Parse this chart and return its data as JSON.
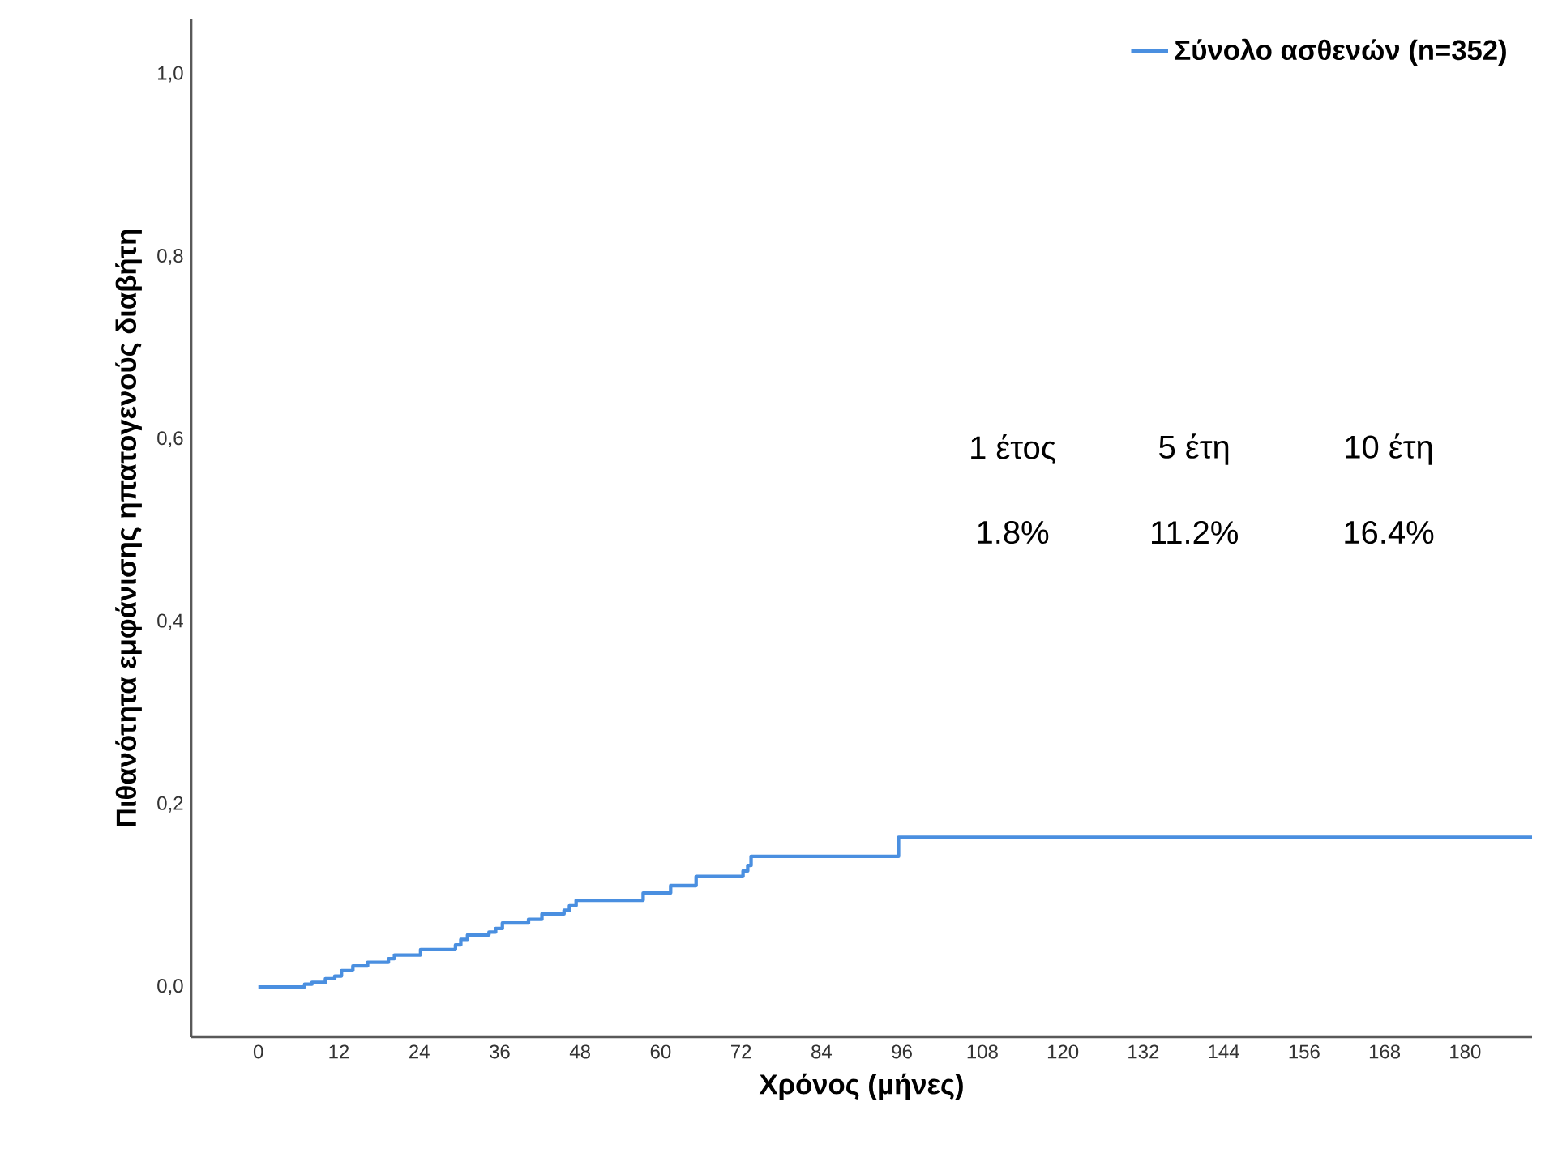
{
  "chart_data": {
    "type": "step",
    "xlabel": "Χρόνος (μήνες)",
    "ylabel": "Πιθανότητα εμφάνισης ηπατογενούς διαβήτη",
    "series": [
      {
        "name": "Σύνολο ασθενών (n=352)",
        "color": "#4a8fe0",
        "x": [
          0,
          6.9,
          8,
          10,
          11.4,
          12.4,
          14.1,
          16.3,
          19.4,
          20.3,
          24.2,
          29.4,
          30.2,
          31.2,
          34.4,
          35.4,
          36.4,
          40.3,
          42.3,
          45.6,
          46.4,
          47.4,
          57.4,
          61.5,
          65.3,
          72.3,
          73,
          73.5,
          95.5,
          190
        ],
        "values": [
          0,
          0.003,
          0.005,
          0.009,
          0.012,
          0.018,
          0.023,
          0.027,
          0.031,
          0.035,
          0.041,
          0.046,
          0.052,
          0.057,
          0.06,
          0.064,
          0.07,
          0.074,
          0.08,
          0.084,
          0.089,
          0.095,
          0.103,
          0.111,
          0.121,
          0.127,
          0.133,
          0.143,
          0.164,
          0.164
        ]
      }
    ],
    "xlim": [
      -10,
      190
    ],
    "ylim": [
      -0.055,
      1.06
    ],
    "xticks": [
      0,
      12,
      24,
      36,
      48,
      60,
      72,
      84,
      96,
      108,
      120,
      132,
      144,
      156,
      168,
      180
    ],
    "yticks": [
      {
        "value": 0,
        "label": "0,0"
      },
      {
        "value": 0.2,
        "label": "0,2"
      },
      {
        "value": 0.4,
        "label": "0,4"
      },
      {
        "value": 0.6,
        "label": "0,6"
      },
      {
        "value": 0.8,
        "label": "0,8"
      },
      {
        "value": 1.0,
        "label": "1,0"
      }
    ],
    "annotations": [
      "1 έτος",
      "5 έτη",
      "10 έτη",
      "1.8%",
      "11.2%",
      "16.4%"
    ],
    "legend": "top right",
    "grid": false
  }
}
